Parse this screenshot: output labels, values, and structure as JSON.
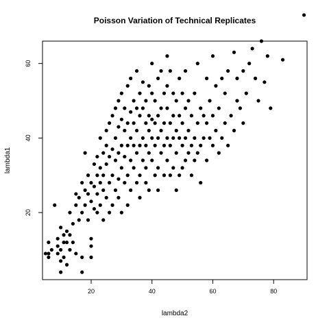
{
  "chart_data": {
    "type": "scatter",
    "title": "Poisson Variation of Technical Replicates",
    "xlabel": "lambda2",
    "ylabel": "lambda1",
    "xlim": [
      4,
      91
    ],
    "ylim": [
      2,
      66
    ],
    "x_ticks": [
      20,
      40,
      60,
      80
    ],
    "y_ticks": [
      20,
      40,
      60
    ],
    "grid": false,
    "legend": "none",
    "point_color": "#000000",
    "points": [
      [
        5,
        9
      ],
      [
        6,
        8
      ],
      [
        6,
        9
      ],
      [
        6,
        12
      ],
      [
        7,
        10
      ],
      [
        8,
        22
      ],
      [
        9,
        9
      ],
      [
        9,
        11
      ],
      [
        9,
        13
      ],
      [
        10,
        4
      ],
      [
        10,
        7
      ],
      [
        10,
        10
      ],
      [
        10,
        16
      ],
      [
        11,
        8
      ],
      [
        11,
        12
      ],
      [
        11,
        14
      ],
      [
        12,
        6
      ],
      [
        12,
        12
      ],
      [
        12,
        15
      ],
      [
        13,
        10
      ],
      [
        13,
        14
      ],
      [
        13,
        20
      ],
      [
        14,
        12
      ],
      [
        14,
        17
      ],
      [
        15,
        22
      ],
      [
        15,
        25
      ],
      [
        15,
        9
      ],
      [
        16,
        18
      ],
      [
        16,
        24
      ],
      [
        17,
        20
      ],
      [
        17,
        28
      ],
      [
        17,
        4
      ],
      [
        17,
        8
      ],
      [
        18,
        36
      ],
      [
        18,
        22
      ],
      [
        18,
        26
      ],
      [
        19,
        25
      ],
      [
        19,
        30
      ],
      [
        19,
        18
      ],
      [
        20,
        13
      ],
      [
        20,
        11
      ],
      [
        20,
        8
      ],
      [
        20,
        28
      ],
      [
        20,
        23
      ],
      [
        21,
        27
      ],
      [
        21,
        33
      ],
      [
        21,
        21
      ],
      [
        22,
        20
      ],
      [
        22,
        25
      ],
      [
        22,
        30
      ],
      [
        22,
        35
      ],
      [
        23,
        22
      ],
      [
        23,
        28
      ],
      [
        23,
        32
      ],
      [
        23,
        40
      ],
      [
        24,
        26
      ],
      [
        24,
        30
      ],
      [
        24,
        36
      ],
      [
        24,
        18
      ],
      [
        25,
        24
      ],
      [
        25,
        33
      ],
      [
        25,
        38
      ],
      [
        25,
        42
      ],
      [
        26,
        20
      ],
      [
        26,
        28
      ],
      [
        26,
        35
      ],
      [
        26,
        44
      ],
      [
        27,
        30
      ],
      [
        27,
        37
      ],
      [
        27,
        46
      ],
      [
        27,
        22
      ],
      [
        28,
        26
      ],
      [
        28,
        34
      ],
      [
        28,
        40
      ],
      [
        28,
        48
      ],
      [
        29,
        29
      ],
      [
        29,
        36
      ],
      [
        29,
        43
      ],
      [
        29,
        50
      ],
      [
        29,
        24
      ],
      [
        30,
        32
      ],
      [
        30,
        38
      ],
      [
        30,
        45
      ],
      [
        30,
        52
      ],
      [
        30,
        20
      ],
      [
        31,
        28
      ],
      [
        31,
        35
      ],
      [
        31,
        42
      ],
      [
        31,
        48
      ],
      [
        32,
        30
      ],
      [
        32,
        38
      ],
      [
        32,
        44
      ],
      [
        32,
        54
      ],
      [
        32,
        22
      ],
      [
        33,
        34
      ],
      [
        33,
        40
      ],
      [
        33,
        47
      ],
      [
        33,
        56
      ],
      [
        33,
        26
      ],
      [
        34,
        32
      ],
      [
        34,
        38
      ],
      [
        34,
        44
      ],
      [
        34,
        50
      ],
      [
        35,
        28
      ],
      [
        35,
        36
      ],
      [
        35,
        42
      ],
      [
        35,
        48
      ],
      [
        35,
        58
      ],
      [
        36,
        30
      ],
      [
        36,
        38
      ],
      [
        36,
        46
      ],
      [
        36,
        52
      ],
      [
        36,
        24
      ],
      [
        37,
        34
      ],
      [
        37,
        40
      ],
      [
        37,
        48
      ],
      [
        37,
        55
      ],
      [
        38,
        32
      ],
      [
        38,
        38
      ],
      [
        38,
        44
      ],
      [
        38,
        50
      ],
      [
        38,
        28
      ],
      [
        39,
        36
      ],
      [
        39,
        42
      ],
      [
        39,
        46
      ],
      [
        39,
        54
      ],
      [
        39,
        26
      ],
      [
        40,
        34
      ],
      [
        40,
        40
      ],
      [
        40,
        45
      ],
      [
        40,
        52
      ],
      [
        40,
        60
      ],
      [
        41,
        30
      ],
      [
        41,
        38
      ],
      [
        41,
        44
      ],
      [
        41,
        50
      ],
      [
        42,
        32
      ],
      [
        42,
        40
      ],
      [
        42,
        46
      ],
      [
        42,
        56
      ],
      [
        42,
        26
      ],
      [
        43,
        36
      ],
      [
        43,
        42
      ],
      [
        43,
        48
      ],
      [
        43,
        58
      ],
      [
        44,
        30
      ],
      [
        44,
        38
      ],
      [
        44,
        44
      ],
      [
        44,
        52
      ],
      [
        45,
        34
      ],
      [
        45,
        40
      ],
      [
        45,
        48
      ],
      [
        45,
        54
      ],
      [
        45,
        62
      ],
      [
        46,
        30
      ],
      [
        46,
        38
      ],
      [
        46,
        44
      ],
      [
        46,
        58
      ],
      [
        47,
        32
      ],
      [
        47,
        40
      ],
      [
        47,
        46
      ],
      [
        47,
        52
      ],
      [
        48,
        36
      ],
      [
        48,
        42
      ],
      [
        48,
        50
      ],
      [
        48,
        26
      ],
      [
        49,
        30
      ],
      [
        49,
        40
      ],
      [
        49,
        46
      ],
      [
        49,
        56
      ],
      [
        50,
        32
      ],
      [
        50,
        38
      ],
      [
        50,
        44
      ],
      [
        50,
        52
      ],
      [
        51,
        34
      ],
      [
        51,
        40
      ],
      [
        51,
        48
      ],
      [
        51,
        58
      ],
      [
        52,
        36
      ],
      [
        52,
        42
      ],
      [
        52,
        50
      ],
      [
        53,
        30
      ],
      [
        53,
        38
      ],
      [
        53,
        46
      ],
      [
        54,
        34
      ],
      [
        54,
        40
      ],
      [
        54,
        52
      ],
      [
        55,
        36
      ],
      [
        55,
        44
      ],
      [
        55,
        60
      ],
      [
        56,
        28
      ],
      [
        56,
        38
      ],
      [
        56,
        48
      ],
      [
        57,
        40
      ],
      [
        57,
        46
      ],
      [
        58,
        34
      ],
      [
        58,
        44
      ],
      [
        58,
        56
      ],
      [
        59,
        40
      ],
      [
        59,
        50
      ],
      [
        60,
        38
      ],
      [
        60,
        46
      ],
      [
        60,
        62
      ],
      [
        61,
        42
      ],
      [
        61,
        54
      ],
      [
        62,
        36
      ],
      [
        62,
        48
      ],
      [
        63,
        40
      ],
      [
        63,
        56
      ],
      [
        64,
        44
      ],
      [
        64,
        52
      ],
      [
        65,
        38
      ],
      [
        65,
        58
      ],
      [
        66,
        46
      ],
      [
        67,
        63
      ],
      [
        67,
        42
      ],
      [
        68,
        56
      ],
      [
        68,
        50
      ],
      [
        69,
        48
      ],
      [
        70,
        58
      ],
      [
        70,
        44
      ],
      [
        71,
        52
      ],
      [
        72,
        60
      ],
      [
        73,
        64
      ],
      [
        74,
        56
      ],
      [
        75,
        50
      ],
      [
        76,
        66
      ],
      [
        77,
        55
      ],
      [
        78,
        62
      ],
      [
        79,
        48
      ],
      [
        83,
        61
      ],
      [
        90,
        73
      ]
    ]
  }
}
